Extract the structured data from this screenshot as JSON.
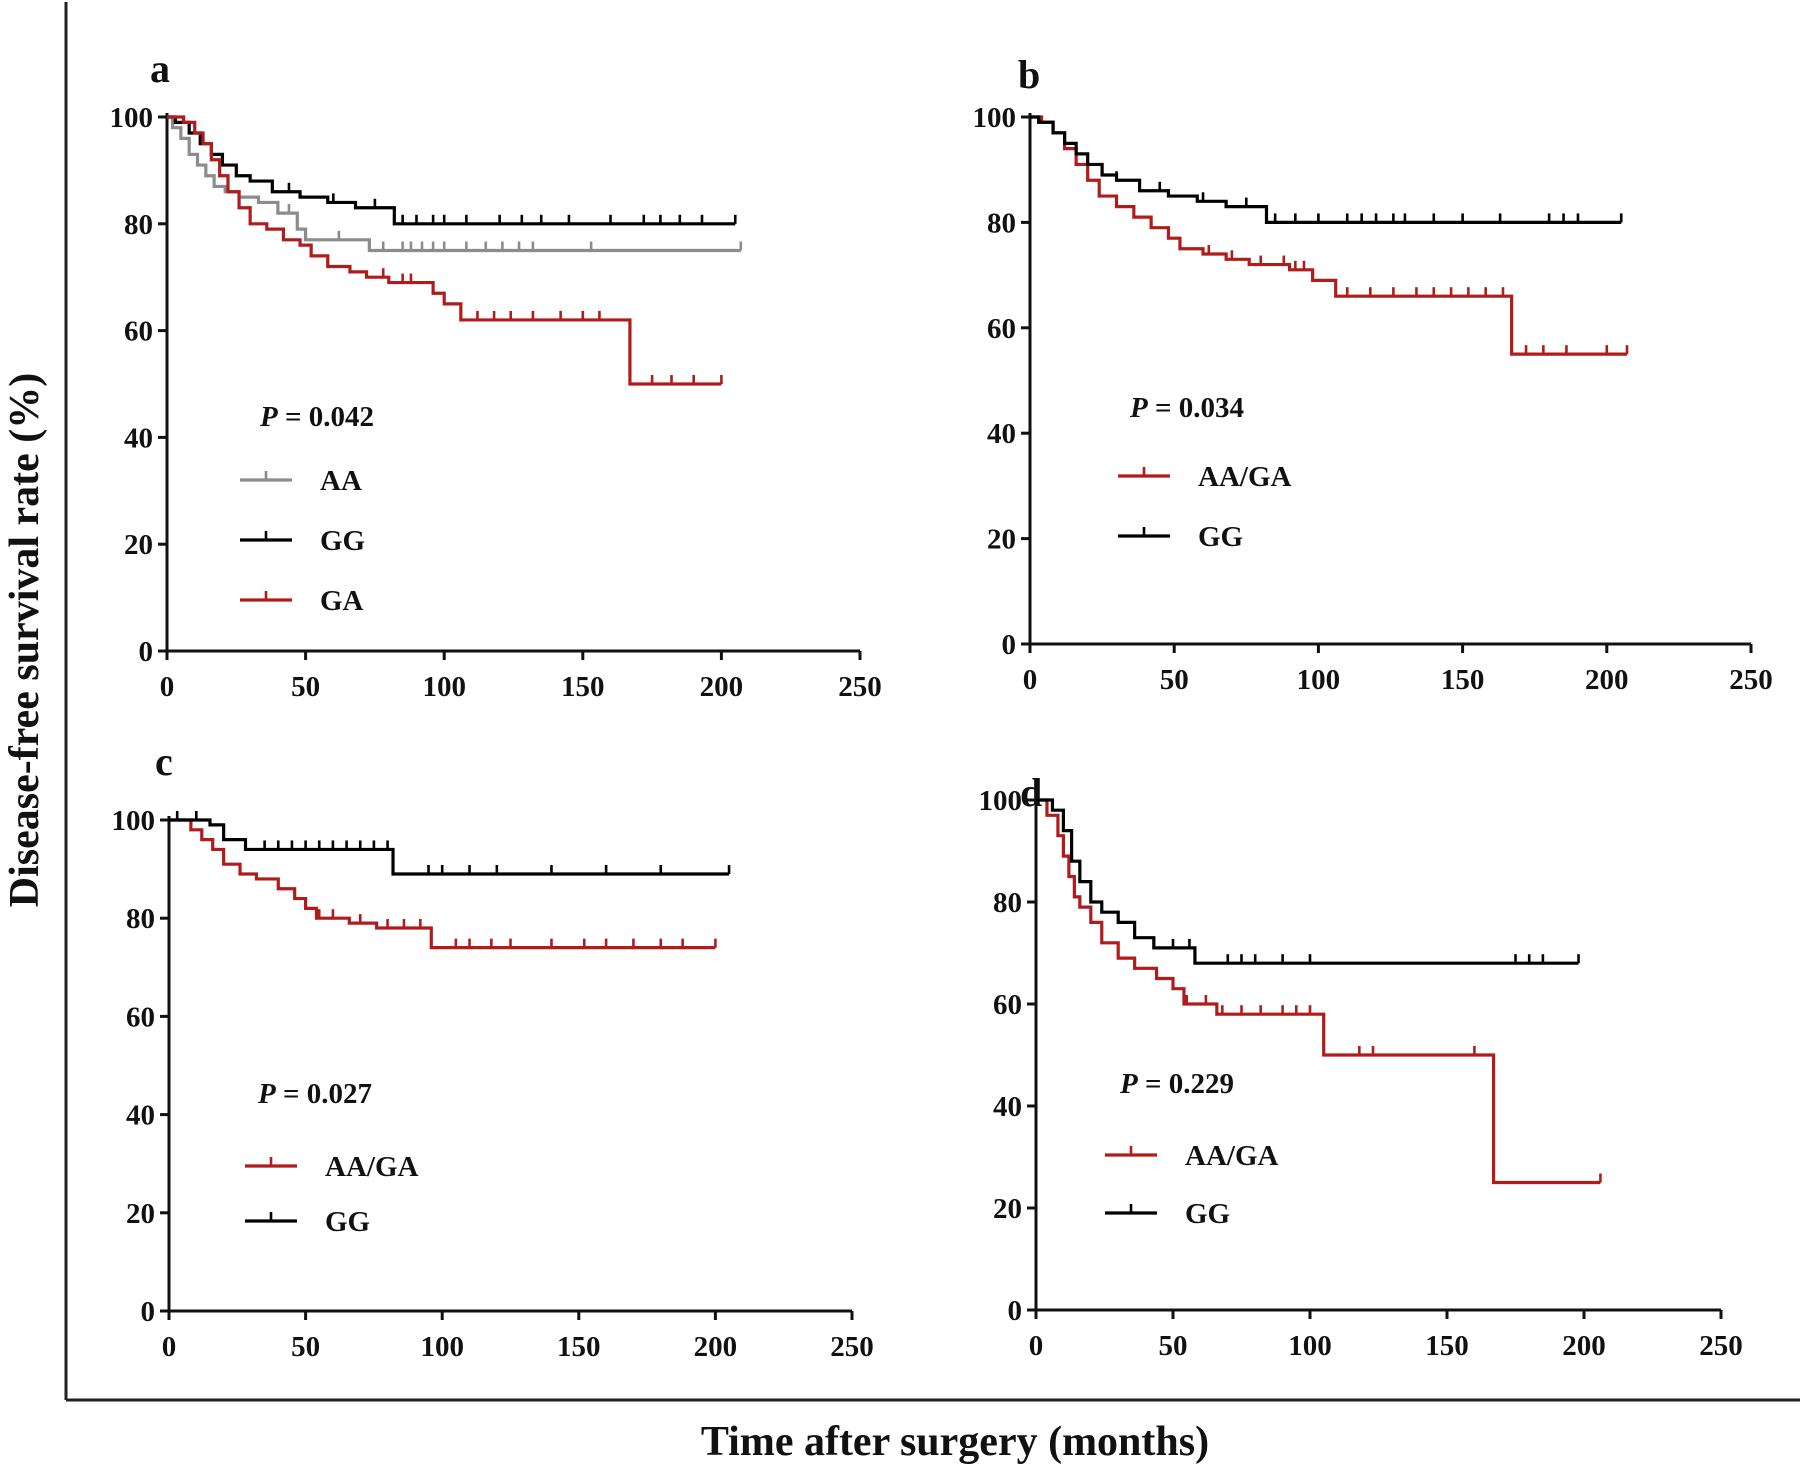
{
  "figure": {
    "ylabel": "Disease-free survival rate (%)",
    "xlabel": "Time after surgery (months)"
  },
  "chart_data": [
    {
      "panel": "a",
      "type": "line",
      "step": true,
      "xlim": [
        0,
        250
      ],
      "ylim": [
        0,
        100
      ],
      "xticks": [
        "0",
        "50",
        "100",
        "150",
        "200",
        "250"
      ],
      "yticks": [
        "0",
        "20",
        "40",
        "60",
        "80",
        "100"
      ],
      "p_label": "P",
      "p_value": " = 0.042",
      "series": [
        {
          "name": "AA",
          "color": "#8c8c8c",
          "x": [
            0,
            2,
            5,
            8,
            11,
            14,
            17,
            21,
            26,
            33,
            40,
            47,
            50,
            60,
            73,
            207
          ],
          "y": [
            100,
            98,
            96,
            93,
            91,
            89,
            87,
            86,
            85,
            84,
            82,
            79,
            77,
            77,
            75,
            75
          ],
          "censor": [
            44,
            62,
            78,
            85,
            88,
            92,
            96,
            100,
            108,
            115,
            121,
            127,
            132,
            153,
            207
          ]
        },
        {
          "name": "GG",
          "color": "#000000",
          "x": [
            0,
            3,
            8,
            12,
            16,
            20,
            25,
            30,
            38,
            48,
            58,
            68,
            82,
            205
          ],
          "y": [
            100,
            99,
            97,
            95,
            93,
            91,
            89,
            88,
            86,
            85,
            84,
            83,
            80,
            80
          ],
          "censor": [
            44,
            60,
            75,
            85,
            90,
            96,
            100,
            108,
            120,
            128,
            135,
            145,
            160,
            172,
            178,
            185,
            193,
            205
          ]
        },
        {
          "name": "GA",
          "color": "#b01c1c",
          "x": [
            0,
            6,
            10,
            13,
            16,
            19,
            22,
            26,
            30,
            36,
            42,
            48,
            52,
            58,
            66,
            72,
            80,
            92,
            96,
            100,
            106,
            167,
            200
          ],
          "y": [
            100,
            99,
            97,
            95,
            92,
            89,
            86,
            83,
            80,
            79,
            77,
            76,
            74,
            72,
            71,
            70,
            69,
            69,
            67,
            65,
            62,
            50,
            50
          ],
          "censor": [
            78,
            85,
            88,
            112,
            118,
            124,
            132,
            142,
            150,
            156,
            175,
            182,
            190,
            200
          ]
        }
      ]
    },
    {
      "panel": "b",
      "type": "line",
      "step": true,
      "xlim": [
        0,
        250
      ],
      "ylim": [
        0,
        100
      ],
      "xticks": [
        "0",
        "50",
        "100",
        "150",
        "200",
        "250"
      ],
      "yticks": [
        "0",
        "20",
        "40",
        "60",
        "80",
        "100"
      ],
      "p_label": "P",
      "p_value": " = 0.034",
      "series": [
        {
          "name": "AA/GA",
          "color": "#b01c1c",
          "x": [
            0,
            4,
            8,
            12,
            16,
            20,
            24,
            30,
            36,
            42,
            48,
            52,
            60,
            68,
            76,
            90,
            98,
            106,
            167,
            207
          ],
          "y": [
            100,
            99,
            97,
            94,
            91,
            88,
            85,
            83,
            81,
            79,
            77,
            75,
            74,
            73,
            72,
            71,
            69,
            66,
            55,
            55
          ],
          "censor": [
            62,
            70,
            80,
            88,
            92,
            95,
            110,
            118,
            126,
            134,
            140,
            146,
            152,
            158,
            164,
            172,
            178,
            186,
            200,
            207
          ]
        },
        {
          "name": "GG",
          "color": "#000000",
          "x": [
            0,
            3,
            8,
            12,
            16,
            20,
            25,
            30,
            38,
            48,
            58,
            68,
            82,
            205
          ],
          "y": [
            100,
            99,
            97,
            95,
            93,
            91,
            89,
            88,
            86,
            85,
            84,
            83,
            80,
            80
          ],
          "censor": [
            30,
            45,
            60,
            75,
            85,
            92,
            100,
            110,
            115,
            120,
            126,
            130,
            140,
            150,
            163,
            180,
            185,
            190,
            205
          ]
        }
      ]
    },
    {
      "panel": "c",
      "type": "line",
      "step": true,
      "xlim": [
        0,
        250
      ],
      "ylim": [
        0,
        100
      ],
      "xticks": [
        "0",
        "50",
        "100",
        "150",
        "200",
        "250"
      ],
      "yticks": [
        "0",
        "20",
        "40",
        "60",
        "80",
        "100"
      ],
      "p_label": "P",
      "p_value": " = 0.027",
      "series": [
        {
          "name": "AA/GA",
          "color": "#b01c1c",
          "x": [
            0,
            8,
            12,
            16,
            20,
            26,
            32,
            40,
            46,
            50,
            54,
            66,
            76,
            96,
            200
          ],
          "y": [
            100,
            98,
            96,
            94,
            91,
            89,
            88,
            86,
            84,
            82,
            80,
            79,
            78,
            74,
            74
          ],
          "censor": [
            55,
            60,
            70,
            80,
            86,
            92,
            105,
            110,
            118,
            125,
            140,
            152,
            160,
            170,
            180,
            188,
            200
          ]
        },
        {
          "name": "GG",
          "color": "#000000",
          "x": [
            0,
            15,
            20,
            28,
            82,
            205
          ],
          "y": [
            100,
            99,
            96,
            94,
            89,
            89
          ],
          "censor": [
            3,
            10,
            35,
            40,
            45,
            50,
            55,
            60,
            65,
            70,
            75,
            80,
            95,
            100,
            110,
            120,
            140,
            160,
            180,
            205
          ]
        }
      ]
    },
    {
      "panel": "d",
      "type": "line",
      "step": true,
      "xlim": [
        0,
        250
      ],
      "ylim": [
        0,
        100
      ],
      "xticks": [
        "0",
        "50",
        "100",
        "150",
        "200",
        "250"
      ],
      "yticks": [
        "0",
        "20",
        "40",
        "60",
        "80",
        "100"
      ],
      "p_label": "P",
      "p_value": " = 0.229",
      "series": [
        {
          "name": "AA/GA",
          "color": "#b01c1c",
          "x": [
            0,
            4,
            8,
            10,
            12,
            14,
            16,
            20,
            24,
            30,
            36,
            44,
            50,
            54,
            66,
            105,
            167,
            206
          ],
          "y": [
            100,
            97,
            93,
            89,
            85,
            81,
            79,
            76,
            72,
            69,
            67,
            65,
            63,
            60,
            58,
            50,
            25,
            25
          ],
          "censor": [
            55,
            62,
            68,
            75,
            82,
            90,
            95,
            100,
            118,
            123,
            160,
            206
          ]
        },
        {
          "name": "GG",
          "color": "#000000",
          "x": [
            0,
            6,
            10,
            13,
            16,
            20,
            24,
            30,
            36,
            43,
            58,
            198
          ],
          "y": [
            100,
            98,
            94,
            88,
            84,
            80,
            78,
            76,
            73,
            71,
            68,
            68
          ],
          "censor": [
            50,
            56,
            70,
            75,
            80,
            90,
            100,
            175,
            180,
            185,
            198
          ]
        }
      ]
    }
  ]
}
